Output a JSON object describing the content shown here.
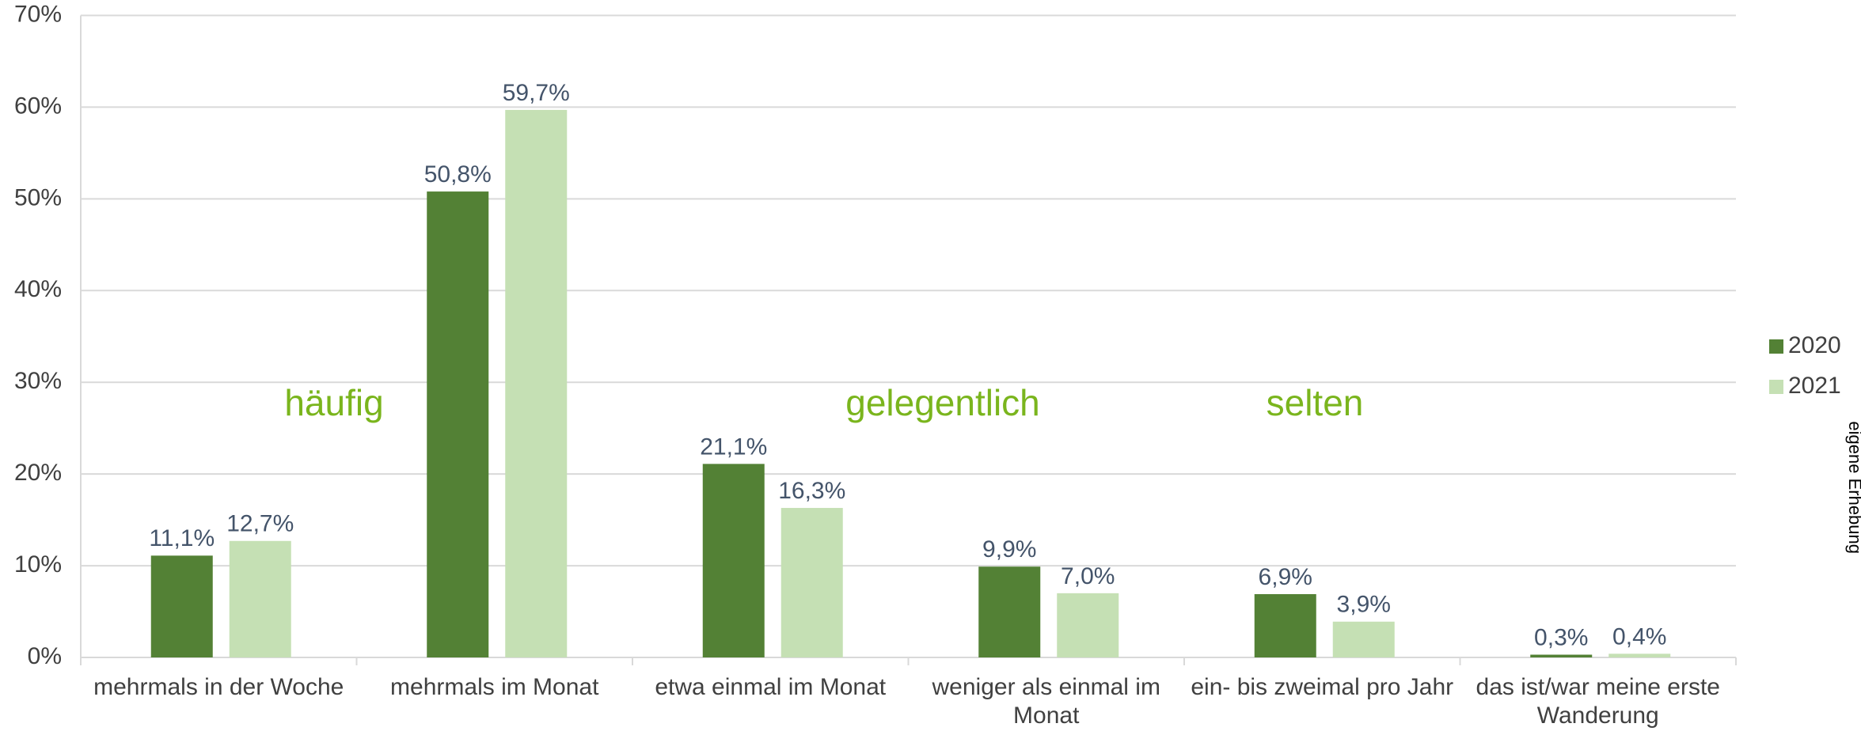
{
  "chart_data": {
    "type": "bar",
    "categories": [
      "mehrmals in der Woche",
      "mehrmals im Monat",
      "etwa einmal im Monat",
      "weniger als einmal im Monat",
      "ein- bis zweimal pro Jahr",
      "das ist/war meine erste Wanderung"
    ],
    "series": [
      {
        "name": "2020",
        "color": "#538135",
        "values": [
          11.1,
          50.8,
          21.1,
          9.9,
          6.9,
          0.3
        ],
        "value_labels": [
          "11,1%",
          "50,8%",
          "21,1%",
          "9,9%",
          "6,9%",
          "0,3%"
        ]
      },
      {
        "name": "2021",
        "color": "#c5e0b4",
        "values": [
          12.7,
          59.7,
          16.3,
          7.0,
          3.9,
          0.4
        ],
        "value_labels": [
          "12,7%",
          "59,7%",
          "16,3%",
          "7,0%",
          "3,9%",
          "0,4%"
        ]
      }
    ],
    "ylim": [
      0,
      70
    ],
    "yticks": [
      {
        "value": 0,
        "label": "0%"
      },
      {
        "value": 10,
        "label": "10%"
      },
      {
        "value": 20,
        "label": "20%"
      },
      {
        "value": 30,
        "label": "30%"
      },
      {
        "value": 40,
        "label": "40%"
      },
      {
        "value": 50,
        "label": "50%"
      },
      {
        "value": 60,
        "label": "60%"
      },
      {
        "value": 70,
        "label": "70%"
      }
    ],
    "grid": true,
    "legend": "right",
    "annotations": [
      "häufig",
      "gelegentlich",
      "selten"
    ],
    "annotation_color": "#7ab51d",
    "source": "eigene Erhebung"
  }
}
